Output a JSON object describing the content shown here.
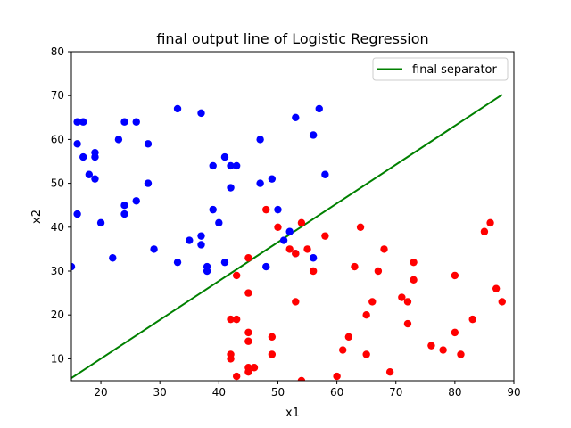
{
  "chart_data": {
    "type": "scatter",
    "title": "final output line of Logistic Regression",
    "xlabel": "x1",
    "ylabel": "x2",
    "xlim": [
      15,
      90
    ],
    "ylim": [
      5,
      80
    ],
    "xticks": [
      20,
      30,
      40,
      50,
      60,
      70,
      80,
      90
    ],
    "yticks": [
      10,
      20,
      30,
      40,
      50,
      60,
      70,
      80
    ],
    "grid": false,
    "legend_position": "top-right",
    "series": [
      {
        "type": "scatter",
        "color": "#0000ff",
        "points": [
          [
            15,
            31
          ],
          [
            16,
            43
          ],
          [
            16,
            59
          ],
          [
            16,
            64
          ],
          [
            17,
            64
          ],
          [
            17,
            56
          ],
          [
            18,
            52
          ],
          [
            19,
            57
          ],
          [
            19,
            56
          ],
          [
            19,
            51
          ],
          [
            20,
            41
          ],
          [
            22,
            33
          ],
          [
            23,
            60
          ],
          [
            24,
            64
          ],
          [
            24,
            45
          ],
          [
            24,
            43
          ],
          [
            26,
            64
          ],
          [
            26,
            46
          ],
          [
            28,
            59
          ],
          [
            28,
            50
          ],
          [
            29,
            35
          ],
          [
            33,
            67
          ],
          [
            33,
            32
          ],
          [
            35,
            37
          ],
          [
            37,
            66
          ],
          [
            37,
            38
          ],
          [
            37,
            36
          ],
          [
            38,
            31
          ],
          [
            38,
            30
          ],
          [
            39,
            54
          ],
          [
            39,
            44
          ],
          [
            40,
            41
          ],
          [
            41,
            56
          ],
          [
            41,
            32
          ],
          [
            42,
            54
          ],
          [
            42,
            49
          ],
          [
            43,
            54
          ],
          [
            47,
            60
          ],
          [
            47,
            50
          ],
          [
            48,
            31
          ],
          [
            49,
            51
          ],
          [
            50,
            44
          ],
          [
            51,
            37
          ],
          [
            52,
            39
          ],
          [
            53,
            65
          ],
          [
            53,
            34
          ],
          [
            56,
            61
          ],
          [
            56,
            33
          ],
          [
            57,
            67
          ],
          [
            58,
            52
          ]
        ]
      },
      {
        "type": "scatter",
        "color": "#ff0000",
        "points": [
          [
            42,
            19
          ],
          [
            42,
            11
          ],
          [
            42,
            10
          ],
          [
            43,
            29
          ],
          [
            43,
            19
          ],
          [
            43,
            6
          ],
          [
            45,
            33
          ],
          [
            45,
            25
          ],
          [
            45,
            16
          ],
          [
            45,
            14
          ],
          [
            45,
            8
          ],
          [
            45,
            7
          ],
          [
            46,
            8
          ],
          [
            48,
            44
          ],
          [
            49,
            15
          ],
          [
            49,
            11
          ],
          [
            50,
            40
          ],
          [
            52,
            35
          ],
          [
            53,
            23
          ],
          [
            53,
            34
          ],
          [
            54,
            41
          ],
          [
            54,
            5
          ],
          [
            55,
            35
          ],
          [
            56,
            30
          ],
          [
            58,
            38
          ],
          [
            60,
            6
          ],
          [
            61,
            12
          ],
          [
            62,
            15
          ],
          [
            63,
            31
          ],
          [
            64,
            40
          ],
          [
            65,
            20
          ],
          [
            65,
            11
          ],
          [
            66,
            23
          ],
          [
            67,
            30
          ],
          [
            68,
            35
          ],
          [
            69,
            7
          ],
          [
            71,
            24
          ],
          [
            72,
            23
          ],
          [
            72,
            18
          ],
          [
            73,
            32
          ],
          [
            73,
            28
          ],
          [
            76,
            13
          ],
          [
            78,
            12
          ],
          [
            80,
            29
          ],
          [
            80,
            16
          ],
          [
            81,
            11
          ],
          [
            83,
            19
          ],
          [
            85,
            39
          ],
          [
            86,
            41
          ],
          [
            87,
            26
          ],
          [
            88,
            23
          ]
        ]
      },
      {
        "type": "line",
        "name": "final separator",
        "color": "#008000",
        "x": [
          15,
          88
        ],
        "y": [
          5.6,
          70.2
        ]
      }
    ]
  }
}
